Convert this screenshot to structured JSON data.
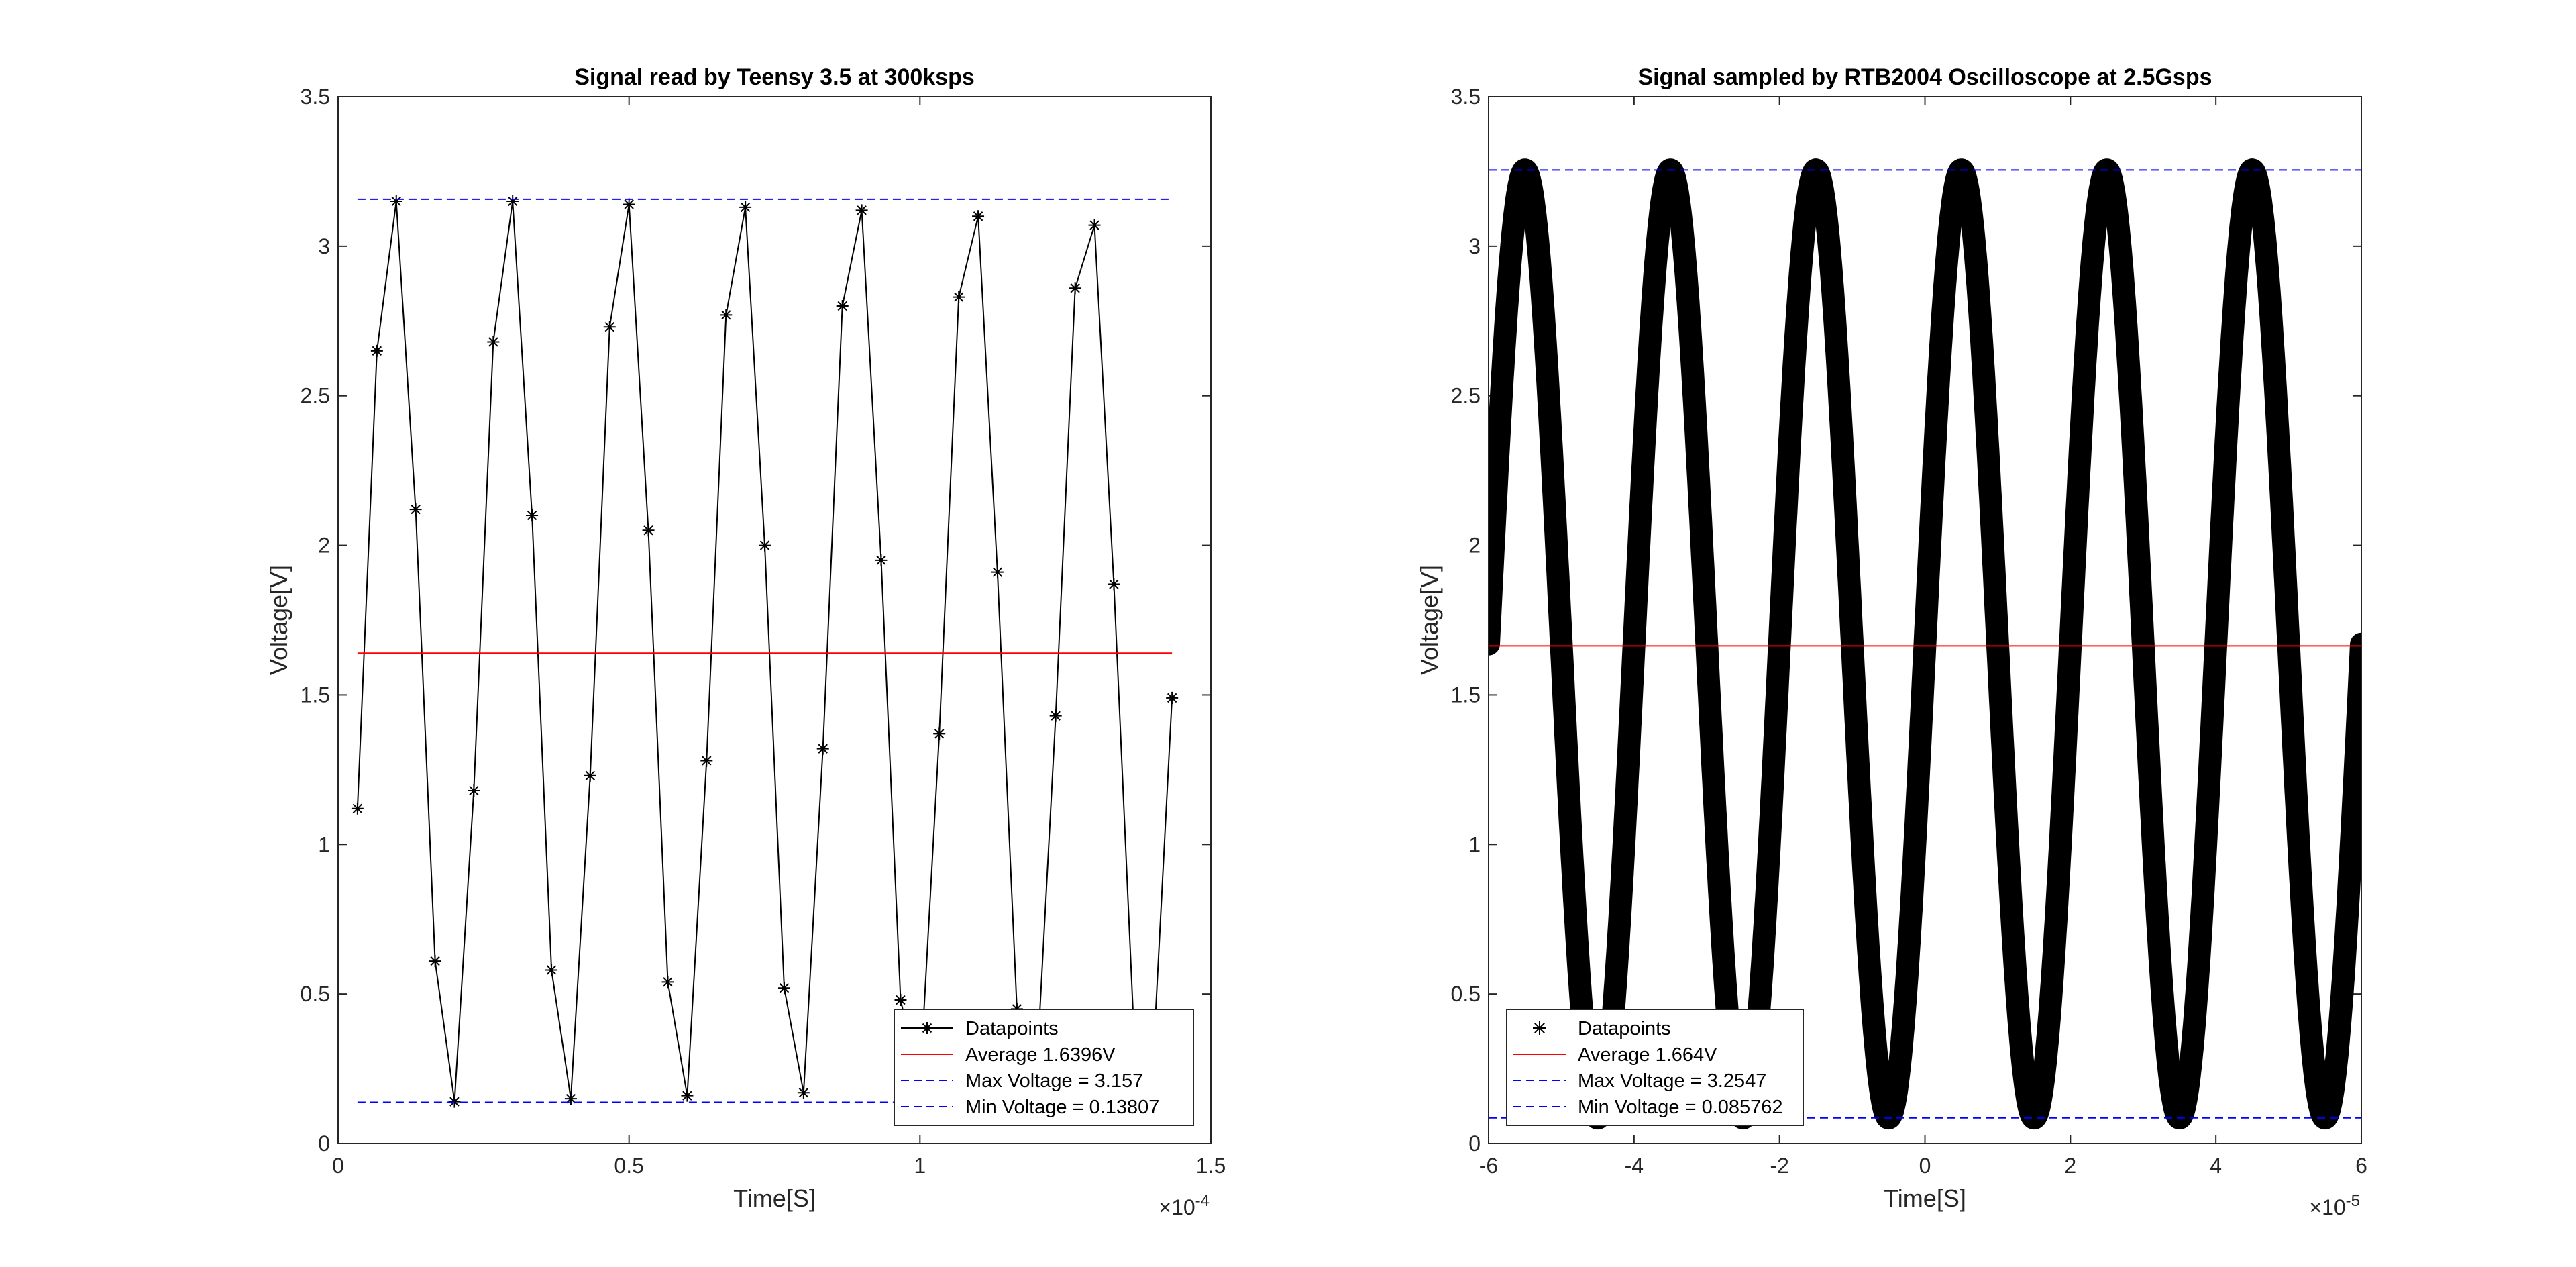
{
  "chart_data": [
    {
      "type": "line",
      "title": "Signal read by Teensy 3.5 at 300ksps",
      "xlabel": "Time[S]",
      "ylabel": "Voltage[V]",
      "xlim": [
        0,
        0.00015
      ],
      "ylim": [
        0,
        3.5
      ],
      "x_tick_labels": [
        "0",
        "0.5",
        "1",
        "1.5"
      ],
      "x_exponent_label": "×10",
      "x_exponent_power": "-4",
      "y_tick_labels": [
        "0",
        "0.5",
        "1",
        "1.5",
        "2",
        "2.5",
        "3",
        "3.5"
      ],
      "grid": false,
      "legend_position": "bottom-right",
      "series": [
        {
          "name": "Datapoints",
          "style": "line-star",
          "color": "#000000",
          "x": [
            3.33e-06,
            6.67e-06,
            1e-05,
            1.333e-05,
            1.667e-05,
            2e-05,
            2.333e-05,
            2.667e-05,
            3e-05,
            3.333e-05,
            3.667e-05,
            4e-05,
            4.333e-05,
            4.667e-05,
            5e-05,
            5.333e-05,
            5.667e-05,
            6e-05,
            6.333e-05,
            6.667e-05,
            7e-05,
            7.333e-05,
            7.667e-05,
            8e-05,
            8.333e-05,
            8.667e-05,
            9e-05,
            9.333e-05,
            9.667e-05,
            0.0001,
            0.00010333,
            0.00010667,
            0.00011,
            0.00011333,
            0.00011667,
            0.00012,
            0.00012333,
            0.00012667,
            0.00013,
            0.00013333,
            0.00013667,
            0.00014,
            0.00014333
          ],
          "y": [
            1.12,
            2.65,
            3.15,
            2.12,
            0.61,
            0.14,
            1.18,
            2.68,
            3.15,
            2.1,
            0.58,
            0.15,
            1.23,
            2.73,
            3.14,
            2.05,
            0.54,
            0.16,
            1.28,
            2.77,
            3.13,
            2.0,
            0.52,
            0.17,
            1.32,
            2.8,
            3.12,
            1.95,
            0.48,
            0.2,
            1.37,
            2.83,
            3.1,
            1.91,
            0.45,
            0.22,
            1.43,
            2.86,
            3.07,
            1.87,
            0.42,
            0.25,
            1.49
          ]
        },
        {
          "name": "Average 1.6396V",
          "style": "solid",
          "color": "#ff0000",
          "x": [
            3.33e-06,
            0.00014333
          ],
          "y": [
            1.6396,
            1.6396
          ]
        },
        {
          "name": "Max Voltage = 3.157",
          "style": "dashed",
          "color": "#0000ff",
          "x": [
            3.33e-06,
            0.00014333
          ],
          "y": [
            3.157,
            3.157
          ]
        },
        {
          "name": "Min Voltage = 0.13807",
          "style": "dashed",
          "color": "#0000ff",
          "x": [
            3.33e-06,
            0.00014333
          ],
          "y": [
            0.13807,
            0.13807
          ]
        }
      ]
    },
    {
      "type": "line",
      "title": "Signal sampled by RTB2004 Oscilloscope at 2.5Gsps",
      "xlabel": "Time[S]",
      "ylabel": "Voltage[V]",
      "xlim": [
        -6e-05,
        6e-05
      ],
      "ylim": [
        0,
        3.5
      ],
      "x_tick_labels": [
        "-6",
        "-4",
        "-2",
        "0",
        "2",
        "4",
        "6"
      ],
      "x_exponent_label": "×10",
      "x_exponent_power": "-5",
      "y_tick_labels": [
        "0",
        "0.5",
        "1",
        "1.5",
        "2",
        "2.5",
        "3",
        "3.5"
      ],
      "grid": false,
      "legend_position": "bottom-left",
      "series": [
        {
          "name": "Datapoints",
          "style": "dense-star",
          "color": "#000000",
          "waveform": {
            "offset": 1.67,
            "amplitude": 1.585,
            "period": 2e-05,
            "peak_at": -5.5e-05,
            "x_start": -6e-05,
            "x_end": 6e-05
          }
        },
        {
          "name": "Average 1.664V",
          "style": "solid",
          "color": "#ff0000",
          "x": [
            -6e-05,
            6e-05
          ],
          "y": [
            1.664,
            1.664
          ]
        },
        {
          "name": "Max Voltage = 3.2547",
          "style": "dashed",
          "color": "#0000ff",
          "x": [
            -6e-05,
            6e-05
          ],
          "y": [
            3.2547,
            3.2547
          ]
        },
        {
          "name": "Min Voltage = 0.085762",
          "style": "dashed",
          "color": "#0000ff",
          "x": [
            -6e-05,
            6e-05
          ],
          "y": [
            0.085762,
            0.085762
          ]
        }
      ]
    }
  ]
}
